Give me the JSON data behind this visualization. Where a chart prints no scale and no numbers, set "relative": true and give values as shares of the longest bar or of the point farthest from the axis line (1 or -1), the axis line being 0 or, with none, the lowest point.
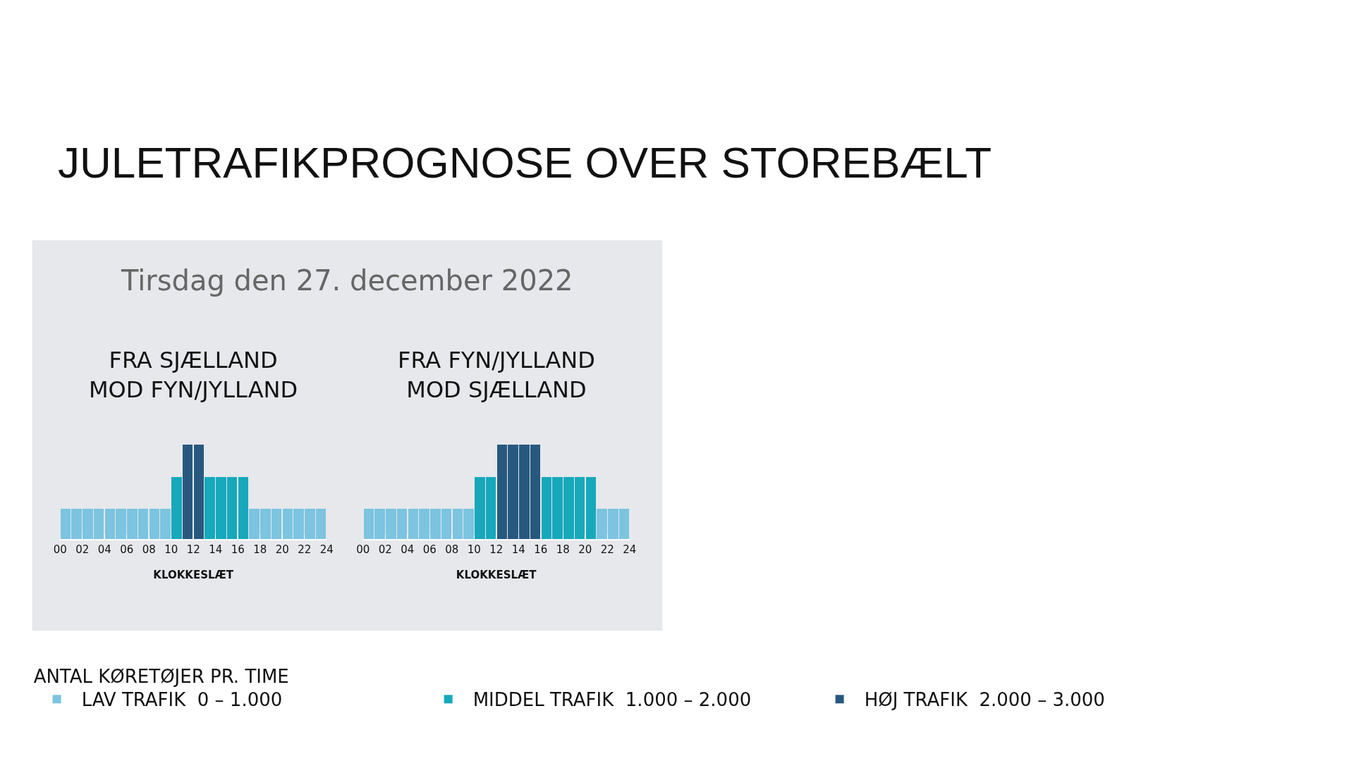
{
  "chart_data": [
    {
      "type": "bar",
      "title": "JULETRAFIKPROGNOSE OVER STOREBÆLT",
      "subtitle": "Tirsdag den 27. december 2022",
      "annotations": [
        "FRA SJÆLLAND\nMOD FYN/JYLLAND"
      ],
      "xlabel": "KLOKKESLÆT",
      "relative": true,
      "legend": "bottom",
      "legend_title": "ANTAL KØRETØJER PR. TIME",
      "x": [
        0.5,
        1.5,
        2.5,
        3.5,
        4.5,
        5.5,
        6.5,
        7.5,
        8.5,
        9.5,
        10.5,
        11.5,
        12.5,
        13.5,
        14.5,
        15.5,
        16.5,
        17.5,
        18.5,
        19.5,
        20.5,
        21.5,
        22.5,
        23.5
      ],
      "xlim": [
        0,
        24
      ],
      "xticks": [
        {
          "value": 0,
          "label": "00"
        },
        {
          "value": 2,
          "label": "02"
        },
        {
          "value": 4,
          "label": "04"
        },
        {
          "value": 6,
          "label": "06"
        },
        {
          "value": 8,
          "label": "08"
        },
        10,
        12,
        14,
        16,
        18,
        20,
        22,
        24
      ],
      "series": [
        {
          "name": "LAV TRAFIK  0 – 1.000",
          "color": "#7cc4e0",
          "values": [
            0.32,
            0.32,
            0.32,
            0.32,
            0.32,
            0.32,
            0.32,
            0.32,
            0.32,
            0.32,
            null,
            null,
            null,
            null,
            null,
            null,
            null,
            0.32,
            0.32,
            0.32,
            0.32,
            0.32,
            0.32,
            0.32
          ]
        },
        {
          "name": "MIDDEL TRAFIK  1.000 – 2.000",
          "color": "#17a8bb",
          "values": [
            null,
            null,
            null,
            null,
            null,
            null,
            null,
            null,
            null,
            null,
            0.66,
            null,
            null,
            0.66,
            0.66,
            0.66,
            0.66,
            null,
            null,
            null,
            null,
            null,
            null,
            null
          ]
        },
        {
          "name": "HØJ TRAFIK  2.000 – 3.000",
          "color": "#27597f",
          "values": [
            null,
            null,
            null,
            null,
            null,
            null,
            null,
            null,
            null,
            null,
            null,
            1,
            1,
            null,
            null,
            null,
            null,
            null,
            null,
            null,
            null,
            null,
            null,
            null
          ]
        }
      ]
    },
    {
      "type": "bar",
      "annotations": [
        "FRA FYN/JYLLAND\nMOD SJÆLLAND"
      ],
      "xlabel": "KLOKKESLÆT",
      "relative": true,
      "x": [
        0.5,
        1.5,
        2.5,
        3.5,
        4.5,
        5.5,
        6.5,
        7.5,
        8.5,
        9.5,
        10.5,
        11.5,
        12.5,
        13.5,
        14.5,
        15.5,
        16.5,
        17.5,
        18.5,
        19.5,
        20.5,
        21.5,
        22.5,
        23.5
      ],
      "xlim": [
        0,
        24
      ],
      "xticks": [
        {
          "value": 0,
          "label": "00"
        },
        {
          "value": 2,
          "label": "02"
        },
        {
          "value": 4,
          "label": "04"
        },
        {
          "value": 6,
          "label": "06"
        },
        {
          "value": 8,
          "label": "08"
        },
        10,
        12,
        14,
        16,
        18,
        20,
        22,
        24
      ],
      "series": [
        {
          "color": "#7cc4e0",
          "values": [
            0.32,
            0.32,
            0.32,
            0.32,
            0.32,
            0.32,
            0.32,
            0.32,
            0.32,
            0.32,
            null,
            null,
            null,
            null,
            null,
            null,
            null,
            null,
            null,
            null,
            null,
            0.32,
            0.32,
            0.32
          ]
        },
        {
          "color": "#17a8bb",
          "values": [
            null,
            null,
            null,
            null,
            null,
            null,
            null,
            null,
            null,
            null,
            0.66,
            0.66,
            null,
            null,
            null,
            null,
            0.66,
            0.66,
            0.66,
            0.66,
            0.66,
            null,
            null,
            null
          ]
        },
        {
          "color": "#27597f",
          "values": [
            null,
            null,
            null,
            null,
            null,
            null,
            null,
            null,
            null,
            null,
            null,
            null,
            1,
            1,
            1,
            1,
            null,
            null,
            null,
            null,
            null,
            null,
            null,
            null
          ]
        }
      ]
    }
  ]
}
